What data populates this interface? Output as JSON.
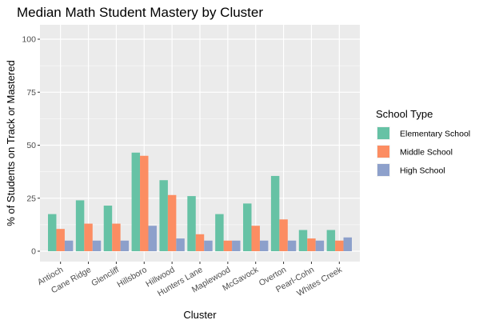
{
  "chart_data": {
    "type": "bar",
    "title": "Median Math Student Mastery by Cluster",
    "xlabel": "Cluster",
    "ylabel": "% of Students on Track or Mastered",
    "ylim": [
      0,
      100
    ],
    "yticks": [
      0,
      25,
      50,
      75,
      100
    ],
    "grid": true,
    "legend_placement": "right",
    "legend_title": "School Type",
    "categories": [
      "Antioch",
      "Cane Ridge",
      "Glencliff",
      "Hillsboro",
      "Hillwood",
      "Hunters Lane",
      "Maplewood",
      "McGavock",
      "Overton",
      "Pearl-Cohn",
      "Whites Creek"
    ],
    "series": [
      {
        "name": "Elementary School",
        "color": "#66c2a5",
        "values": [
          17.5,
          24,
          21.5,
          46.5,
          33.5,
          26,
          17.5,
          22.5,
          35.5,
          10,
          10
        ]
      },
      {
        "name": "Middle School",
        "color": "#fc8d62",
        "values": [
          10.5,
          13,
          13,
          45,
          26.5,
          8,
          5,
          12,
          15,
          6,
          5
        ]
      },
      {
        "name": "High School",
        "color": "#8da0cb",
        "values": [
          5,
          5,
          5,
          12,
          6,
          5,
          5,
          5,
          5,
          5,
          6.5
        ]
      }
    ],
    "panel_background": "#ebebeb"
  }
}
